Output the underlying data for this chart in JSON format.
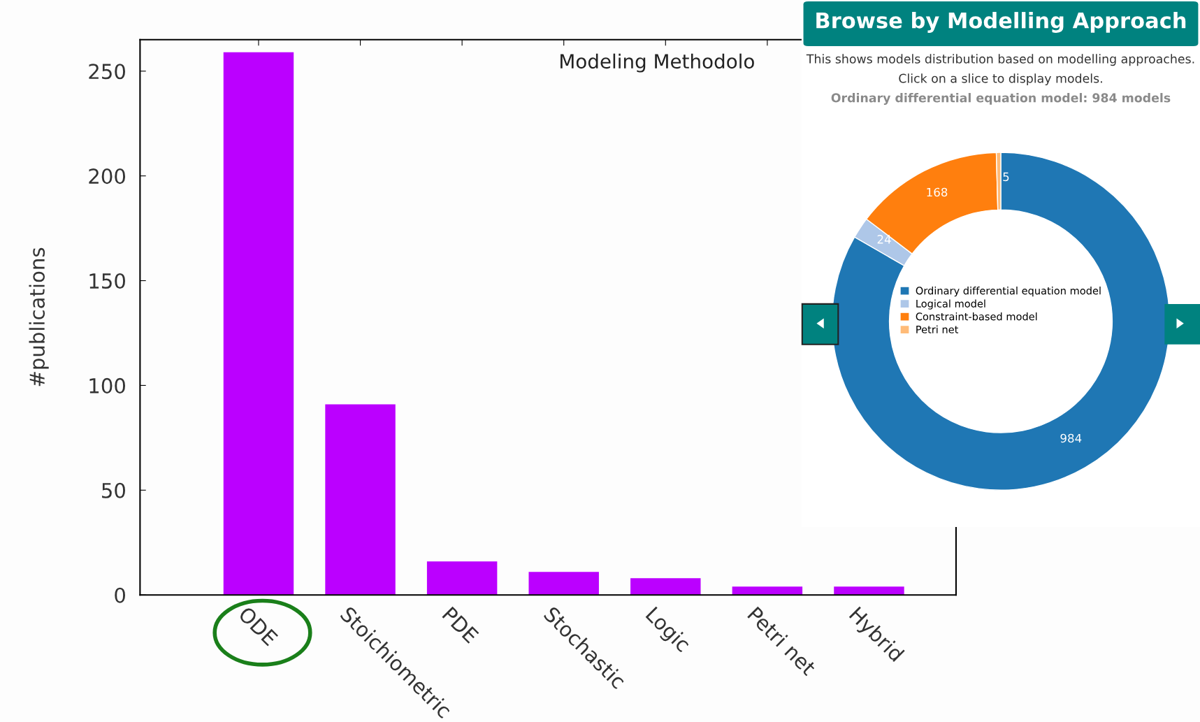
{
  "chart_data": [
    {
      "type": "bar",
      "title": "Modeling Methodolo",
      "ylabel": "#publications",
      "categories": [
        "ODE",
        "Stoichiometric",
        "PDE",
        "Stochastic",
        "Logic",
        "Petri net",
        "Hybrid"
      ],
      "values": [
        259,
        91,
        16,
        11,
        8,
        4,
        4
      ],
      "color": "#bb00ff",
      "ylim": [
        0,
        265
      ],
      "yticks": [
        0,
        50,
        100,
        150,
        200,
        250
      ],
      "grid": false,
      "legend": false
    },
    {
      "type": "donut",
      "title": "Browse by Modelling Approach",
      "subtitle": "This shows models distribution based on modelling approaches.",
      "annotations": [
        "Click on a slice to display models.",
        "Ordinary differential equation model: 984 models"
      ],
      "categories": [
        "Ordinary differential equation model",
        "Logical model",
        "Constraint-based model",
        "Petri net"
      ],
      "values": [
        984,
        24,
        168,
        5
      ],
      "colors": [
        "#1f77b4",
        "#aec7e8",
        "#ff7f0e",
        "#ffbb78"
      ],
      "data_labels": true,
      "legend": "center"
    }
  ]
}
